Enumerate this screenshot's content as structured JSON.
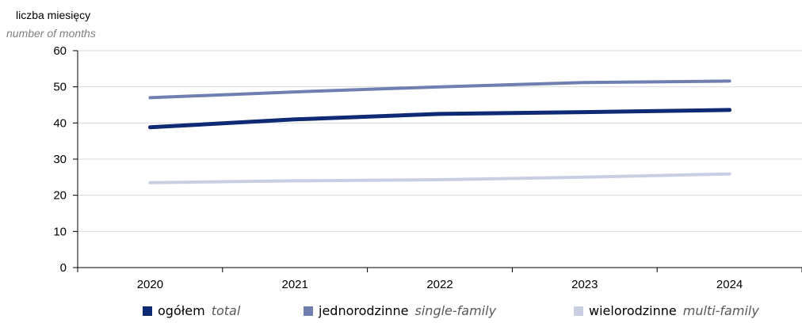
{
  "chart_data": {
    "type": "line",
    "ylabel": "liczba miesięcy",
    "ylabel_en": "number of months",
    "x": [
      "2020",
      "2021",
      "2022",
      "2023",
      "2024"
    ],
    "ylim": [
      0,
      60
    ],
    "yticks": [
      0,
      10,
      20,
      30,
      40,
      50,
      60
    ],
    "grid": true,
    "legend_position": "bottom",
    "series": [
      {
        "name": "ogółem",
        "name_en": "total",
        "color": "#0f2a74",
        "values": [
          38.8,
          41.0,
          42.5,
          43.0,
          43.6
        ]
      },
      {
        "name": "jednorodzinne",
        "name_en": "single-family",
        "color": "#6f7fb0",
        "values": [
          47.0,
          48.6,
          50.0,
          51.2,
          51.6
        ]
      },
      {
        "name": "wielorodzinne",
        "name_en": "multi-family",
        "color": "#c9cfe3",
        "values": [
          23.5,
          24.0,
          24.3,
          25.0,
          25.9
        ]
      }
    ]
  }
}
